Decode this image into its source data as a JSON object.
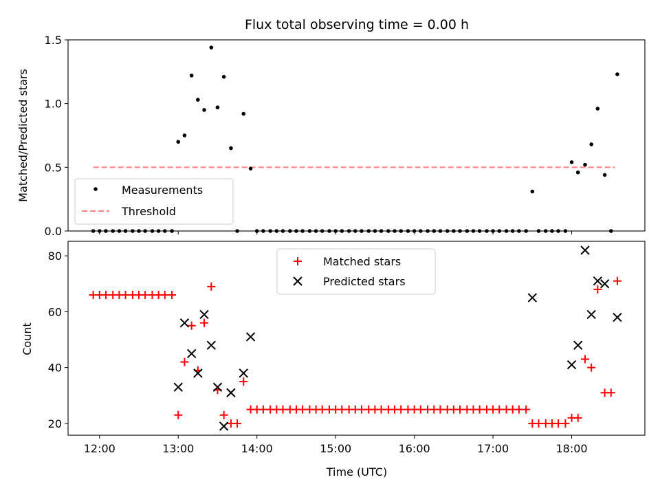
{
  "chart_data": [
    {
      "type": "scatter",
      "title": "Flux total observing time = 0.00 h",
      "ylabel": "Matched/Predicted stars",
      "xlabel": "",
      "ylim": [
        0,
        1.5
      ],
      "xlim_hours": [
        11.6,
        18.93
      ],
      "yticks": [
        0.0,
        0.5,
        1.0,
        1.5
      ],
      "ytick_labels": [
        "0.0",
        "0.5",
        "1.0",
        "1.5"
      ],
      "legend_position": "lower-left",
      "legend": [
        "Measurements",
        "Threshold"
      ],
      "threshold": {
        "name": "Threshold",
        "value": 0.5,
        "x_range": [
          11.92,
          18.55
        ],
        "color": "#ff8080"
      },
      "series": [
        {
          "name": "Measurements",
          "color": "#000000",
          "x": [
            11.92,
            12.0,
            12.08,
            12.17,
            12.25,
            12.33,
            12.42,
            12.5,
            12.58,
            12.67,
            12.75,
            12.83,
            12.92,
            13.0,
            13.08,
            13.17,
            13.25,
            13.33,
            13.42,
            13.5,
            13.58,
            13.67,
            13.75,
            13.83,
            13.92,
            14.0,
            14.08,
            14.17,
            14.25,
            14.33,
            14.42,
            14.5,
            14.58,
            14.67,
            14.75,
            14.83,
            14.92,
            15.0,
            15.08,
            15.17,
            15.25,
            15.33,
            15.42,
            15.5,
            15.58,
            15.67,
            15.75,
            15.83,
            15.92,
            16.0,
            16.08,
            16.17,
            16.25,
            16.33,
            16.42,
            16.5,
            16.58,
            16.67,
            16.75,
            16.83,
            16.92,
            17.0,
            17.08,
            17.17,
            17.25,
            17.33,
            17.42,
            17.5,
            17.58,
            17.67,
            17.75,
            17.83,
            17.92,
            18.0,
            18.08,
            18.17,
            18.25,
            18.33,
            18.42,
            18.5,
            18.58
          ],
          "y": [
            0,
            0,
            0,
            0,
            0,
            0,
            0,
            0,
            0,
            0,
            0,
            0,
            0,
            0.7,
            0.75,
            1.22,
            1.03,
            0.95,
            1.44,
            0.97,
            1.21,
            0.65,
            0,
            0.92,
            0.49,
            0,
            0,
            0,
            0,
            0,
            0,
            0,
            0,
            0,
            0,
            0,
            0,
            0,
            0,
            0,
            0,
            0,
            0,
            0,
            0,
            0,
            0,
            0,
            0,
            0,
            0,
            0,
            0,
            0,
            0,
            0,
            0,
            0,
            0,
            0,
            0,
            0,
            0,
            0,
            0,
            0,
            0,
            0.31,
            0,
            0,
            0,
            0,
            0,
            0.54,
            0.46,
            0.52,
            0.68,
            0.96,
            0.44,
            0,
            1.23
          ]
        }
      ]
    },
    {
      "type": "scatter",
      "title": "",
      "ylabel": "Count",
      "xlabel": "Time (UTC)",
      "ylim": [
        15.8,
        85.2
      ],
      "xlim_hours": [
        11.6,
        18.93
      ],
      "yticks": [
        20,
        40,
        60,
        80
      ],
      "ytick_labels": [
        "20",
        "40",
        "60",
        "80"
      ],
      "xticks_hours": [
        12,
        13,
        14,
        15,
        16,
        17,
        18
      ],
      "xtick_labels": [
        "12:00",
        "13:00",
        "14:00",
        "15:00",
        "16:00",
        "17:00",
        "18:00"
      ],
      "legend_position": "upper-center",
      "legend": [
        "Matched stars",
        "Predicted stars"
      ],
      "series": [
        {
          "name": "Matched stars",
          "marker": "plus",
          "color": "#ff0000",
          "x": [
            11.92,
            12.0,
            12.08,
            12.17,
            12.25,
            12.33,
            12.42,
            12.5,
            12.58,
            12.67,
            12.75,
            12.83,
            12.92,
            13.0,
            13.08,
            13.17,
            13.25,
            13.33,
            13.42,
            13.5,
            13.58,
            13.67,
            13.75,
            13.83,
            13.92,
            14.0,
            14.08,
            14.17,
            14.25,
            14.33,
            14.42,
            14.5,
            14.58,
            14.67,
            14.75,
            14.83,
            14.92,
            15.0,
            15.08,
            15.17,
            15.25,
            15.33,
            15.42,
            15.5,
            15.58,
            15.67,
            15.75,
            15.83,
            15.92,
            16.0,
            16.08,
            16.17,
            16.25,
            16.33,
            16.42,
            16.5,
            16.58,
            16.67,
            16.75,
            16.83,
            16.92,
            17.0,
            17.08,
            17.17,
            17.25,
            17.33,
            17.42,
            17.5,
            17.58,
            17.67,
            17.75,
            17.83,
            17.92,
            18.0,
            18.08,
            18.17,
            18.25,
            18.33,
            18.42,
            18.5,
            18.58
          ],
          "y": [
            66,
            66,
            66,
            66,
            66,
            66,
            66,
            66,
            66,
            66,
            66,
            66,
            66,
            23,
            42,
            55,
            39,
            56,
            69,
            32,
            23,
            20,
            20,
            35,
            25,
            25,
            25,
            25,
            25,
            25,
            25,
            25,
            25,
            25,
            25,
            25,
            25,
            25,
            25,
            25,
            25,
            25,
            25,
            25,
            25,
            25,
            25,
            25,
            25,
            25,
            25,
            25,
            25,
            25,
            25,
            25,
            25,
            25,
            25,
            25,
            25,
            25,
            25,
            25,
            25,
            25,
            25,
            20,
            20,
            20,
            20,
            20,
            20,
            22,
            22,
            43,
            40,
            68,
            31,
            31,
            71
          ]
        },
        {
          "name": "Predicted stars",
          "marker": "x",
          "color": "#000000",
          "x": [
            13.0,
            13.08,
            13.17,
            13.25,
            13.33,
            13.42,
            13.5,
            13.58,
            13.67,
            13.83,
            13.92,
            17.5,
            18.0,
            18.08,
            18.17,
            18.25,
            18.33,
            18.42,
            18.58
          ],
          "y": [
            33,
            56,
            45,
            38,
            59,
            48,
            33,
            19,
            31,
            38,
            51,
            65,
            41,
            48,
            82,
            59,
            71,
            70,
            58
          ]
        }
      ]
    }
  ]
}
